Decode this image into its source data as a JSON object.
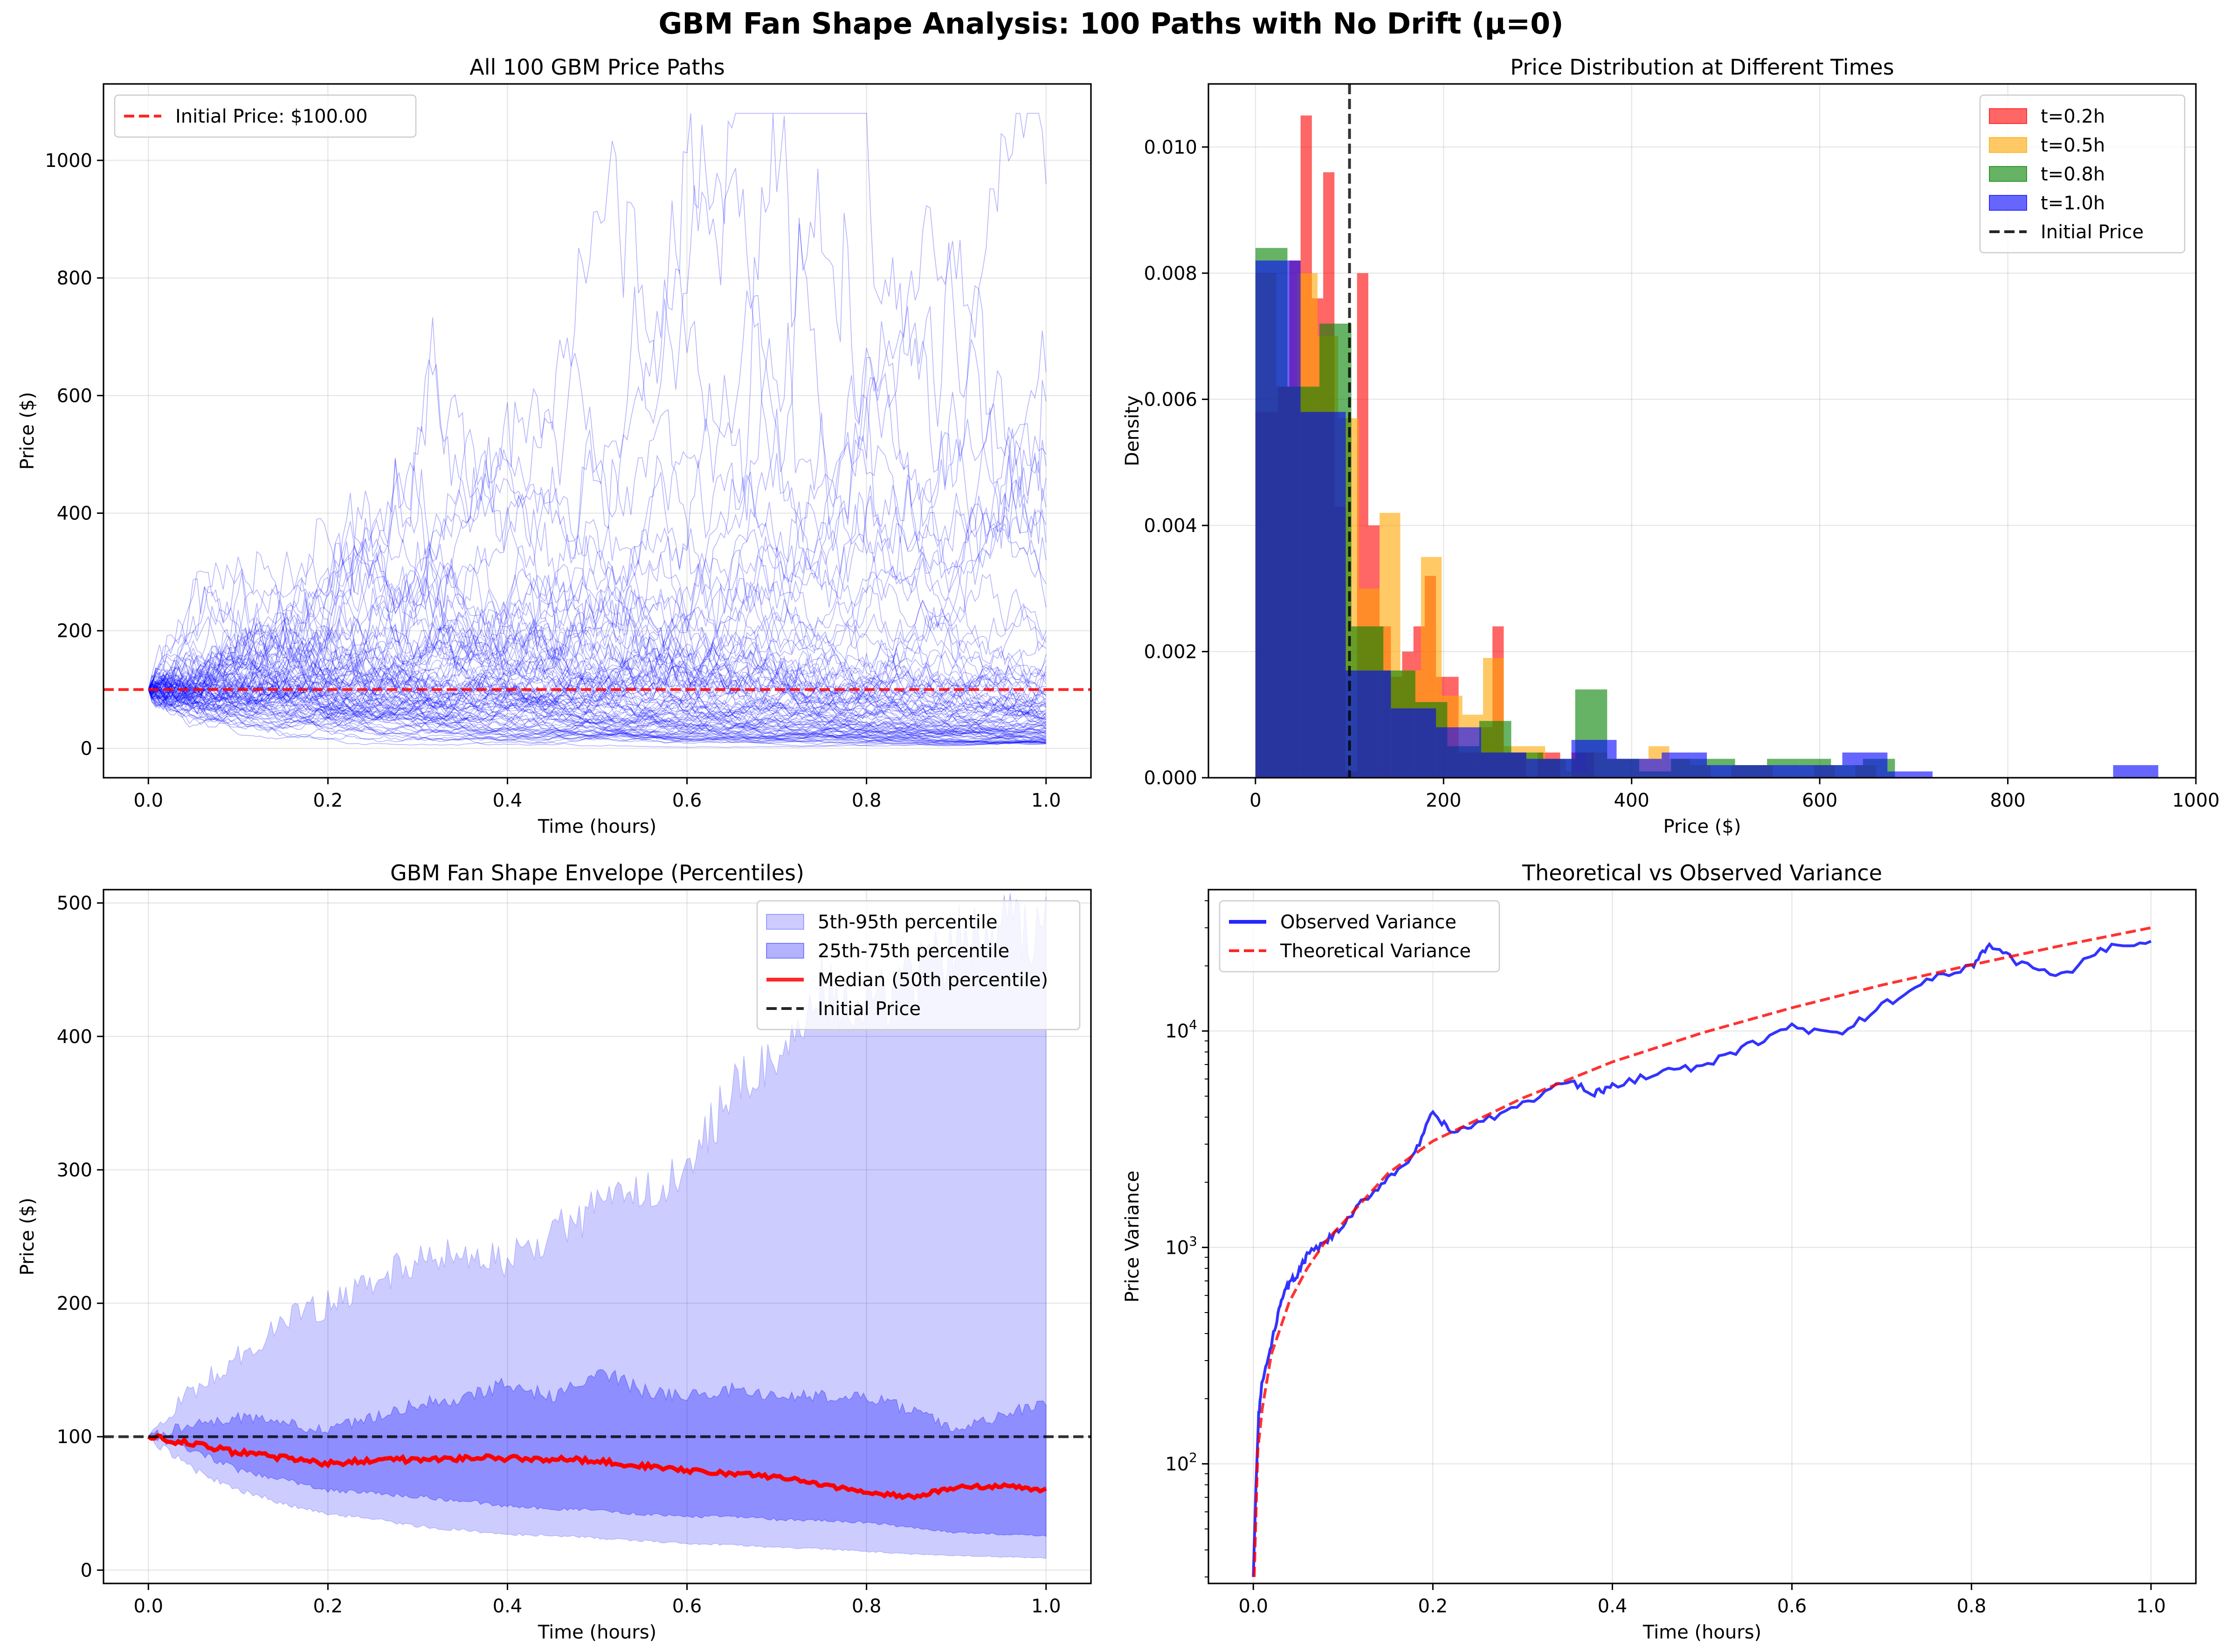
{
  "suptitle": "GBM Fan Shape Analysis: 100 Paths with No Drift (μ=0)",
  "colors": {
    "blue": "#0000ff",
    "red": "#ff0000",
    "orange": "#ffa500",
    "green": "#008000",
    "black": "#000000",
    "grid": "#b0b0b0"
  },
  "chart_data": [
    {
      "type": "line",
      "title": "All 100 GBM Price Paths",
      "xlabel": "Time (hours)",
      "ylabel": "Price ($)",
      "xlim": [
        -0.05,
        1.05
      ],
      "ylim": [
        -50,
        1130
      ],
      "xticks": [
        0.0,
        0.2,
        0.4,
        0.6,
        0.8,
        1.0
      ],
      "xtick_labels": [
        "0.0",
        "0.2",
        "0.4",
        "0.6",
        "0.8",
        "1.0"
      ],
      "yticks": [
        0,
        200,
        400,
        600,
        800,
        1000
      ],
      "ytick_labels": [
        "0",
        "200",
        "400",
        "600",
        "800",
        "1000"
      ],
      "grid": true,
      "legend_position": "upper-left",
      "legend": [
        {
          "label": "Initial Price: $100.00",
          "color": "#ff0000",
          "style": "dashed"
        }
      ],
      "paths_count": 100,
      "path_endpoints": [
        960,
        640,
        590,
        500,
        480,
        460,
        410,
        380,
        350,
        320,
        280,
        240,
        200,
        190,
        180,
        170,
        160,
        150,
        140,
        130,
        125,
        120,
        115,
        110,
        105,
        100,
        95,
        92,
        90,
        88,
        85,
        82,
        80,
        78,
        76,
        74,
        72,
        70,
        68,
        66,
        64,
        62,
        60,
        58,
        56,
        55,
        54,
        52,
        50,
        49,
        48,
        46,
        45,
        44,
        42,
        41,
        40,
        39,
        38,
        37,
        36,
        35,
        34,
        33,
        32,
        31,
        30,
        29,
        28,
        27,
        26,
        25,
        24,
        23,
        22,
        21,
        20,
        19,
        18,
        17,
        16,
        15,
        15,
        14,
        14,
        13,
        13,
        12,
        12,
        11,
        11,
        10,
        10,
        10,
        9,
        9,
        9,
        8,
        8,
        8
      ],
      "initial_price": 100
    },
    {
      "type": "bar",
      "title": "Price Distribution at Different Times",
      "xlabel": "Price ($)",
      "ylabel": "Density",
      "xlim": [
        -50,
        1000
      ],
      "ylim": [
        0,
        0.011
      ],
      "xticks": [
        0,
        200,
        400,
        600,
        800,
        1000
      ],
      "xtick_labels": [
        "0",
        "200",
        "400",
        "600",
        "800",
        "1000"
      ],
      "yticks": [
        0,
        0.002,
        0.004,
        0.006,
        0.008,
        0.01
      ],
      "ytick_labels": [
        "0.000",
        "0.002",
        "0.004",
        "0.006",
        "0.008",
        "0.010"
      ],
      "grid": true,
      "legend_position": "upper-right",
      "initial_price": 100,
      "series": [
        {
          "name": "t=0.2h",
          "color": "#ff0000",
          "bin_width": 12,
          "bins": [
            [
              0,
              0.0058
            ],
            [
              12,
              0.0058
            ],
            [
              24,
              0.0062
            ],
            [
              36,
              0.0082
            ],
            [
              48,
              0.0105
            ],
            [
              60,
              0.0076
            ],
            [
              72,
              0.0096
            ],
            [
              84,
              0.0043
            ],
            [
              96,
              0.0001
            ],
            [
              108,
              0.008
            ],
            [
              120,
              0.004
            ],
            [
              132,
              0.0024
            ],
            [
              144,
              0.0016
            ],
            [
              156,
              0.002
            ],
            [
              168,
              0.0024
            ],
            [
              180,
              0.0032
            ],
            [
              192,
              0.0016
            ],
            [
              204,
              0.0016
            ],
            [
              216,
              0.0004
            ],
            [
              228,
              0.0004
            ],
            [
              240,
              0.0008
            ],
            [
              252,
              0.0024
            ],
            [
              264,
              0.0004
            ],
            [
              276,
              0.0004
            ],
            [
              300,
              0.0004
            ],
            [
              312,
              0.0004
            ],
            [
              336,
              0.0004
            ],
            [
              348,
              0.0004
            ]
          ]
        },
        {
          "name": "t=0.5h",
          "color": "#ffa500",
          "bin_width": 22,
          "bins": [
            [
              0,
              0.008
            ],
            [
              22,
              0.0062
            ],
            [
              44,
              0.008
            ],
            [
              66,
              0.007
            ],
            [
              88,
              0.0057
            ],
            [
              110,
              0.003
            ],
            [
              132,
              0.0042
            ],
            [
              154,
              0.0017
            ],
            [
              176,
              0.0035
            ],
            [
              198,
              0.0013
            ],
            [
              220,
              0.001
            ],
            [
              242,
              0.0019
            ],
            [
              264,
              0.0005
            ],
            [
              286,
              0.0005
            ],
            [
              308,
              0.0003
            ],
            [
              330,
              0.0001
            ],
            [
              352,
              0.0004
            ],
            [
              374,
              0.0003
            ],
            [
              396,
              0.0003
            ],
            [
              418,
              0.0005
            ],
            [
              440,
              0.0003
            ],
            [
              462,
              0.0002
            ],
            [
              506,
              0.0002
            ],
            [
              528,
              0.0002
            ],
            [
              594,
              0.0002
            ],
            [
              638,
              0.0002
            ]
          ]
        },
        {
          "name": "t=0.8h",
          "color": "#008000",
          "bin_width": 34,
          "bins": [
            [
              0,
              0.0084
            ],
            [
              34,
              0.0062
            ],
            [
              68,
              0.0072
            ],
            [
              102,
              0.0024
            ],
            [
              136,
              0.0017
            ],
            [
              170,
              0.0012
            ],
            [
              204,
              0.0005
            ],
            [
              238,
              0.0009
            ],
            [
              272,
              0.0004
            ],
            [
              306,
              0.0003
            ],
            [
              340,
              0.0014
            ],
            [
              374,
              0.0003
            ],
            [
              408,
              0.0001
            ],
            [
              442,
              0.0003
            ],
            [
              476,
              0.0003
            ],
            [
              510,
              0.0002
            ],
            [
              544,
              0.0003
            ],
            [
              578,
              0.0003
            ],
            [
              612,
              0.0002
            ],
            [
              646,
              0.0003
            ]
          ]
        },
        {
          "name": "t=1.0h",
          "color": "#0000ff",
          "bin_width": 48,
          "bins": [
            [
              0,
              0.0082
            ],
            [
              48,
              0.0058
            ],
            [
              96,
              0.0017
            ],
            [
              144,
              0.0011
            ],
            [
              192,
              0.0008
            ],
            [
              240,
              0.0004
            ],
            [
              288,
              0.0003
            ],
            [
              336,
              0.0006
            ],
            [
              384,
              0.0003
            ],
            [
              432,
              0.0004
            ],
            [
              480,
              0.0002
            ],
            [
              528,
              0.0002
            ],
            [
              576,
              0.0002
            ],
            [
              624,
              0.0004
            ],
            [
              672,
              0.0001
            ],
            [
              912,
              0.0002
            ]
          ]
        }
      ],
      "legend": [
        {
          "label": "t=0.2h",
          "color": "#ff0000",
          "style": "patch"
        },
        {
          "label": "t=0.5h",
          "color": "#ffa500",
          "style": "patch"
        },
        {
          "label": "t=0.8h",
          "color": "#008000",
          "style": "patch"
        },
        {
          "label": "t=1.0h",
          "color": "#0000ff",
          "style": "patch"
        },
        {
          "label": "Initial Price",
          "color": "#000000",
          "style": "dashed"
        }
      ]
    },
    {
      "type": "area",
      "title": "GBM Fan Shape Envelope (Percentiles)",
      "xlabel": "Time (hours)",
      "ylabel": "Price ($)",
      "xlim": [
        -0.05,
        1.05
      ],
      "ylim": [
        -10,
        510
      ],
      "xticks": [
        0.0,
        0.2,
        0.4,
        0.6,
        0.8,
        1.0
      ],
      "xtick_labels": [
        "0.0",
        "0.2",
        "0.4",
        "0.6",
        "0.8",
        "1.0"
      ],
      "yticks": [
        0,
        100,
        200,
        300,
        400,
        500
      ],
      "ytick_labels": [
        "0",
        "100",
        "200",
        "300",
        "400",
        "500"
      ],
      "grid": true,
      "legend_position": "upper-right",
      "x": [
        0.0,
        0.05,
        0.1,
        0.15,
        0.2,
        0.25,
        0.3,
        0.35,
        0.4,
        0.45,
        0.5,
        0.55,
        0.6,
        0.65,
        0.7,
        0.75,
        0.8,
        0.85,
        0.9,
        0.95,
        1.0
      ],
      "p5": [
        100,
        75,
        60,
        50,
        42,
        38,
        33,
        30,
        27,
        26,
        24,
        22,
        20,
        19,
        17,
        16,
        14,
        12,
        11,
        10,
        9
      ],
      "p25": [
        100,
        90,
        75,
        68,
        60,
        58,
        55,
        52,
        48,
        46,
        45,
        42,
        40,
        40,
        38,
        37,
        36,
        32,
        28,
        27,
        26
      ],
      "p75": [
        100,
        110,
        115,
        110,
        105,
        115,
        125,
        128,
        140,
        130,
        150,
        135,
        130,
        135,
        130,
        130,
        130,
        120,
        105,
        115,
        128
      ],
      "p95": [
        100,
        135,
        160,
        185,
        200,
        215,
        235,
        240,
        230,
        255,
        270,
        280,
        300,
        360,
        380,
        440,
        420,
        440,
        470,
        480,
        480
      ],
      "median": [
        100,
        95,
        88,
        84,
        80,
        82,
        83,
        84,
        84,
        83,
        82,
        78,
        75,
        72,
        70,
        64,
        58,
        55,
        62,
        63,
        60
      ],
      "initial_price": 100,
      "legend": [
        {
          "label": "5th-95th percentile",
          "color": "#0000ff",
          "style": "patch-light"
        },
        {
          "label": "25th-75th percentile",
          "color": "#0000ff",
          "style": "patch"
        },
        {
          "label": "Median (50th percentile)",
          "color": "#ff0000",
          "style": "solid"
        },
        {
          "label": "Initial Price",
          "color": "#000000",
          "style": "dashed"
        }
      ]
    },
    {
      "type": "line",
      "title": "Theoretical vs Observed Variance",
      "xlabel": "Time (hours)",
      "ylabel": "Price Variance",
      "xlim": [
        -0.05,
        1.05
      ],
      "ylim": [
        28,
        45000
      ],
      "yscale": "log",
      "xticks": [
        0.0,
        0.2,
        0.4,
        0.6,
        0.8,
        1.0
      ],
      "xtick_labels": [
        "0.0",
        "0.2",
        "0.4",
        "0.6",
        "0.8",
        "1.0"
      ],
      "yticks": [
        100,
        1000,
        10000
      ],
      "ytick_base": "10",
      "ytick_exponents": [
        "2",
        "3",
        "4"
      ],
      "grid": true,
      "legend_position": "upper-left",
      "series": [
        {
          "name": "Observed Variance",
          "color": "#0000ff",
          "style": "solid",
          "x": [
            0.0,
            0.003,
            0.006,
            0.01,
            0.02,
            0.03,
            0.04,
            0.05,
            0.06,
            0.08,
            0.1,
            0.12,
            0.15,
            0.18,
            0.2,
            0.22,
            0.25,
            0.3,
            0.35,
            0.38,
            0.4,
            0.45,
            0.5,
            0.55,
            0.6,
            0.65,
            0.7,
            0.75,
            0.8,
            0.82,
            0.85,
            0.9,
            0.95,
            1.0
          ],
          "values": [
            30,
            80,
            170,
            240,
            350,
            560,
            680,
            760,
            920,
            1050,
            1250,
            1600,
            2100,
            2700,
            4200,
            3400,
            3700,
            4600,
            5900,
            5200,
            5500,
            6500,
            6800,
            8500,
            10500,
            9500,
            13000,
            17000,
            20000,
            25000,
            21000,
            18000,
            24000,
            26000
          ]
        },
        {
          "name": "Theoretical Variance",
          "color": "#ff0000",
          "style": "dashed",
          "x": [
            0.001,
            0.005,
            0.01,
            0.02,
            0.04,
            0.06,
            0.08,
            0.1,
            0.15,
            0.2,
            0.3,
            0.4,
            0.5,
            0.6,
            0.7,
            0.8,
            0.9,
            1.0
          ],
          "values": [
            30,
            115,
            180,
            320,
            560,
            800,
            1060,
            1300,
            2200,
            3100,
            4900,
            7200,
            9800,
            12800,
            16300,
            20200,
            24800,
            30000
          ]
        }
      ],
      "legend": [
        {
          "label": "Observed Variance",
          "color": "#0000ff",
          "style": "solid"
        },
        {
          "label": "Theoretical Variance",
          "color": "#ff0000",
          "style": "dashed"
        }
      ]
    }
  ]
}
